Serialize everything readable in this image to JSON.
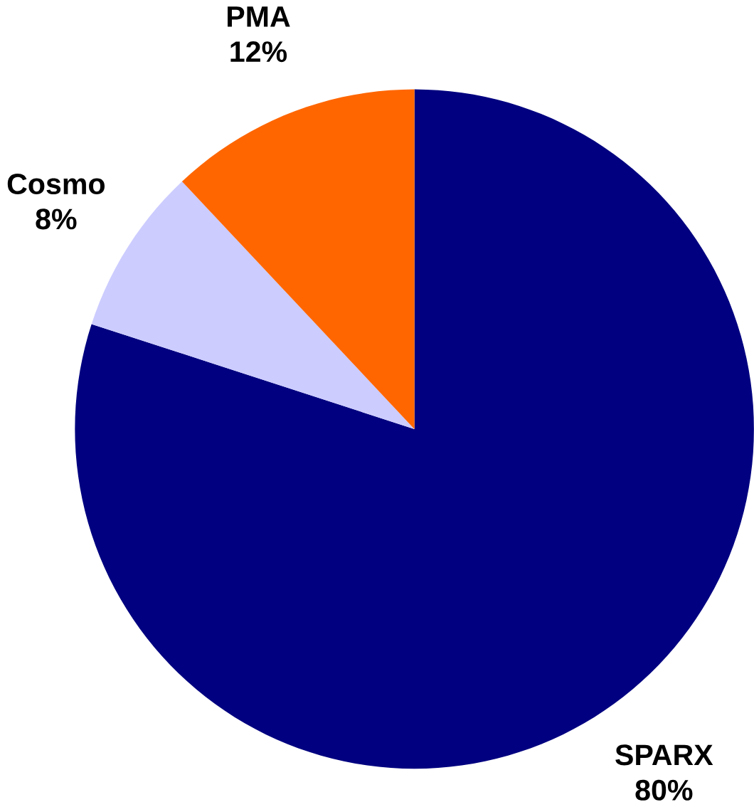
{
  "chart_data": {
    "type": "pie",
    "categories": [
      "SPARX",
      "Cosmo",
      "PMA"
    ],
    "values": [
      80,
      8,
      12
    ],
    "colors": [
      "#000080",
      "#ccccff",
      "#ff6600"
    ],
    "value_labels": [
      "80%",
      "8%",
      "12%"
    ]
  }
}
